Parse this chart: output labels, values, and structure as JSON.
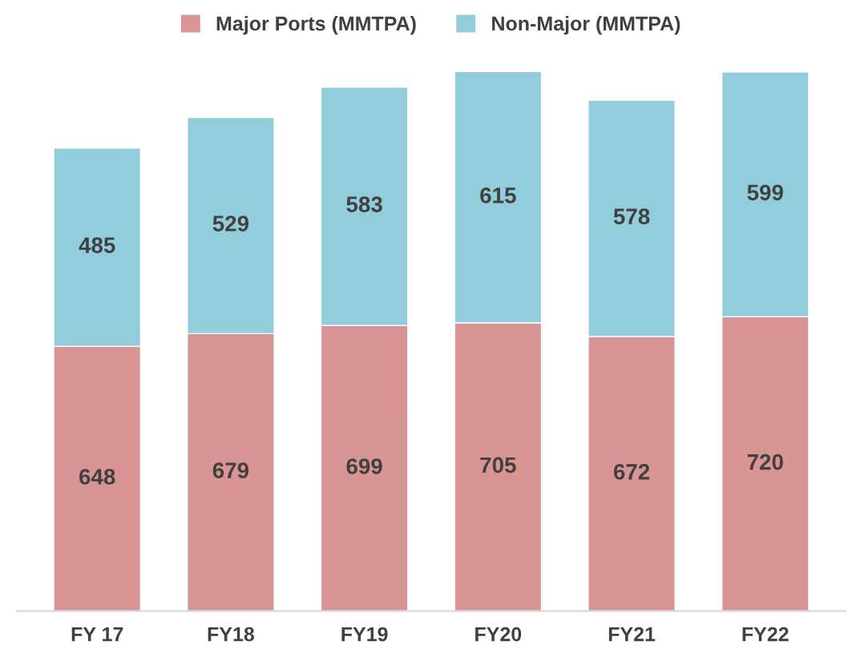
{
  "chart_data": {
    "type": "bar",
    "stacked": true,
    "categories": [
      "FY 17",
      "FY18",
      "FY19",
      "FY20",
      "FY21",
      "FY22"
    ],
    "series": [
      {
        "name": "Major Ports (MMTPA)",
        "color": "#d99594",
        "values": [
          648,
          679,
          699,
          705,
          672,
          720
        ]
      },
      {
        "name": "Non-Major (MMTPA)",
        "color": "#92cddc",
        "values": [
          485,
          529,
          583,
          615,
          578,
          599
        ]
      }
    ],
    "data_labels": true,
    "legend": "top",
    "grid": false,
    "tick_labels": "x"
  }
}
